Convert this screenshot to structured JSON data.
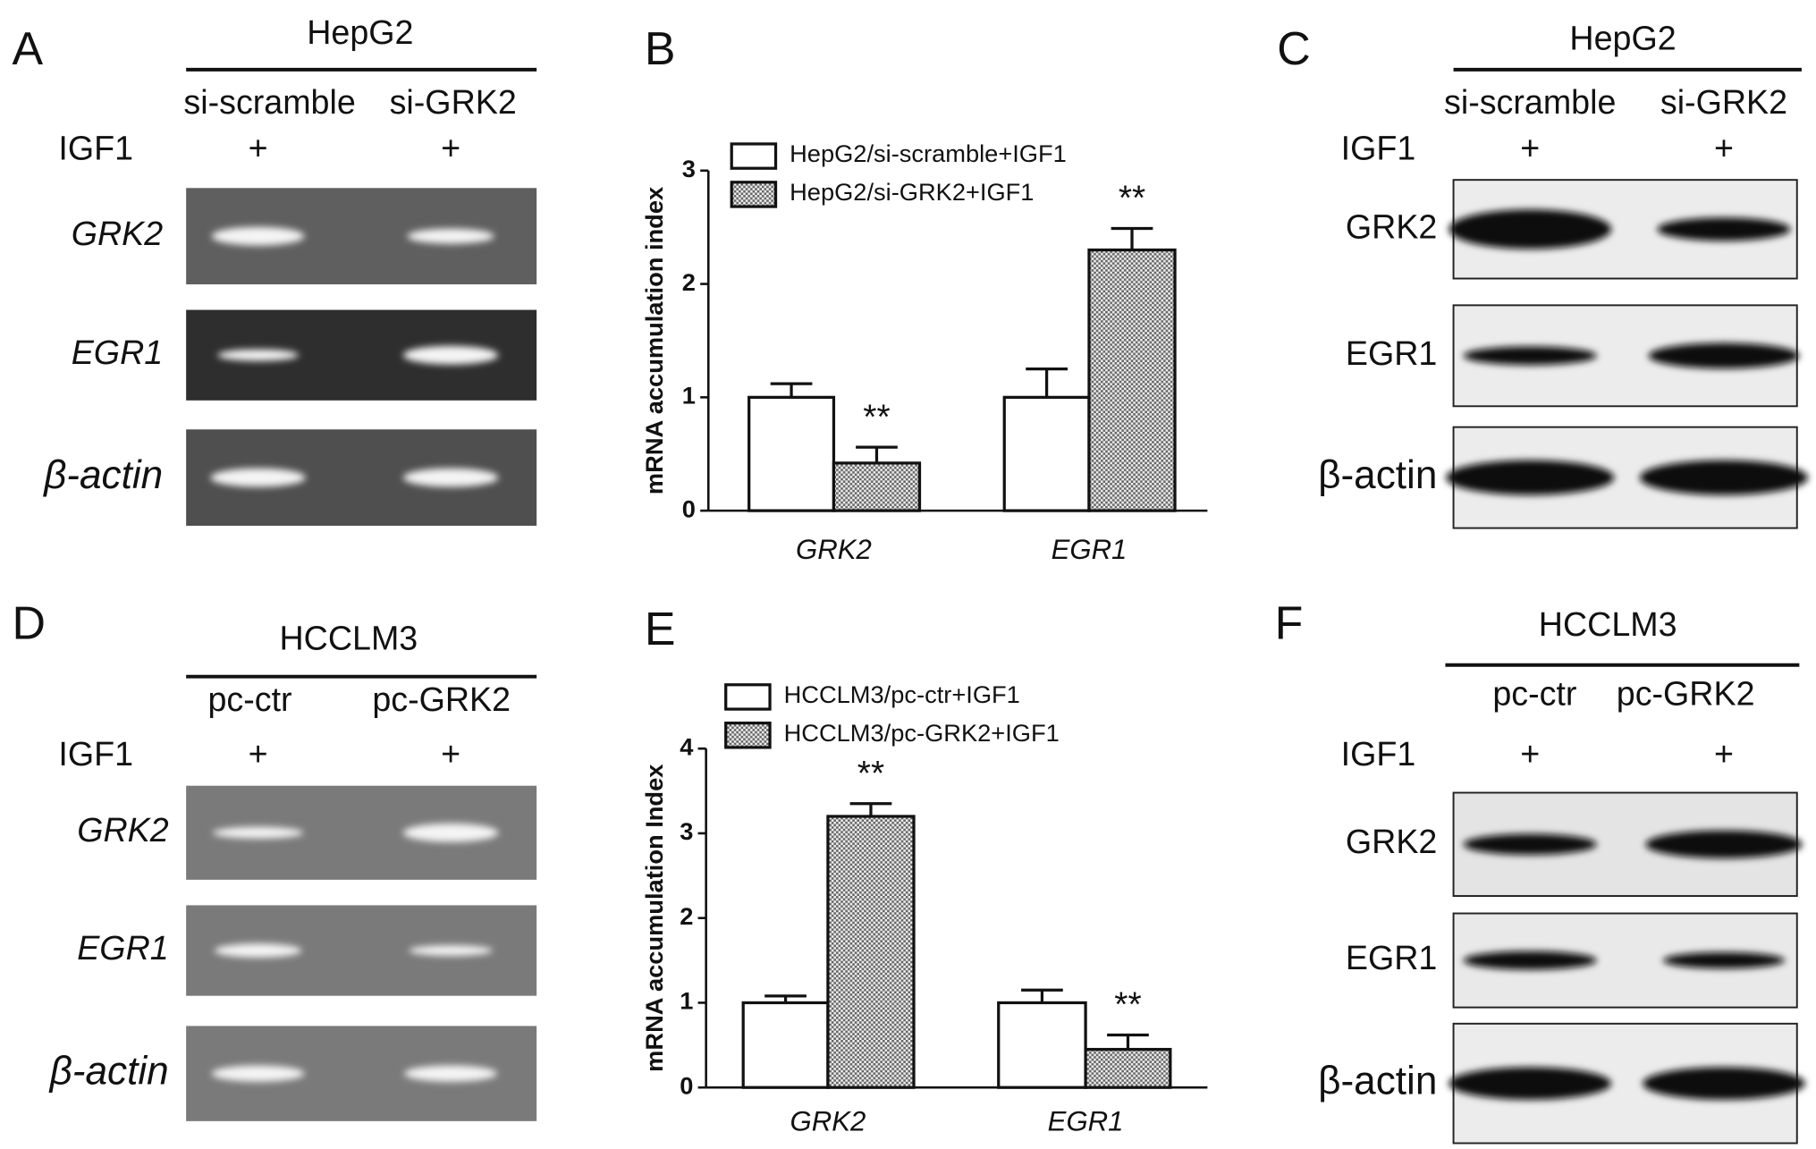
{
  "gels": [
    {
      "letter": "A",
      "title": "HepG2",
      "conditions": [
        "si-scramble",
        "si-GRK2"
      ],
      "treatment": "IGF1",
      "marks": [
        "+",
        "+"
      ],
      "rows": [
        "GRK2",
        "EGR1",
        "β-actin"
      ],
      "italic": true
    },
    {
      "letter": "C",
      "title": "HepG2",
      "conditions": [
        "si-scramble",
        "si-GRK2"
      ],
      "treatment": "IGF1",
      "marks": [
        "+",
        "+"
      ],
      "rows": [
        "GRK2",
        "EGR1",
        "β-actin"
      ],
      "italic": false
    },
    {
      "letter": "D",
      "title": "HCCLM3",
      "conditions": [
        "pc-ctr",
        "pc-GRK2"
      ],
      "treatment": "IGF1",
      "marks": [
        "+",
        "+"
      ],
      "rows": [
        "GRK2",
        "EGR1",
        "β-actin"
      ],
      "italic": true
    },
    {
      "letter": "F",
      "title": "HCCLM3",
      "conditions": [
        "pc-ctr",
        "pc-GRK2"
      ],
      "treatment": "IGF1",
      "marks": [
        "+",
        "+"
      ],
      "rows": [
        "GRK2",
        "EGR1",
        "β-actin"
      ],
      "italic": false
    }
  ],
  "chart_data": [
    {
      "type": "bar",
      "letter": "B",
      "ylabel": "mRNA accumulation index",
      "categories": [
        "GRK2",
        "EGR1"
      ],
      "series": [
        {
          "name": "HepG2/si-scramble+IGF1",
          "color": "#ffffff",
          "values": [
            1,
            1
          ],
          "errors": [
            0.12,
            0.25
          ]
        },
        {
          "name": "HepG2/si-GRK2+IGF1",
          "color": "#888888",
          "pattern": "checker",
          "values": [
            0.42,
            2.3
          ],
          "errors": [
            0.14,
            0.19
          ],
          "annotations": [
            "**",
            "**"
          ]
        }
      ],
      "ylim": [
        0,
        3
      ],
      "yticks": [
        0,
        1,
        2,
        3
      ]
    },
    {
      "type": "bar",
      "letter": "E",
      "ylabel": "mRNA accumulation Index",
      "categories": [
        "GRK2",
        "EGR1"
      ],
      "series": [
        {
          "name": "HCCLM3/pc-ctr+IGF1",
          "color": "#ffffff",
          "values": [
            1,
            1
          ],
          "errors": [
            0.08,
            0.15
          ]
        },
        {
          "name": "HCCLM3/pc-GRK2+IGF1",
          "color": "#888888",
          "pattern": "checker",
          "values": [
            3.2,
            0.45
          ],
          "errors": [
            0.15,
            0.17
          ],
          "annotations": [
            "**",
            "**"
          ]
        }
      ],
      "ylim": [
        0,
        4
      ],
      "yticks": [
        0,
        1,
        2,
        3,
        4
      ]
    }
  ]
}
